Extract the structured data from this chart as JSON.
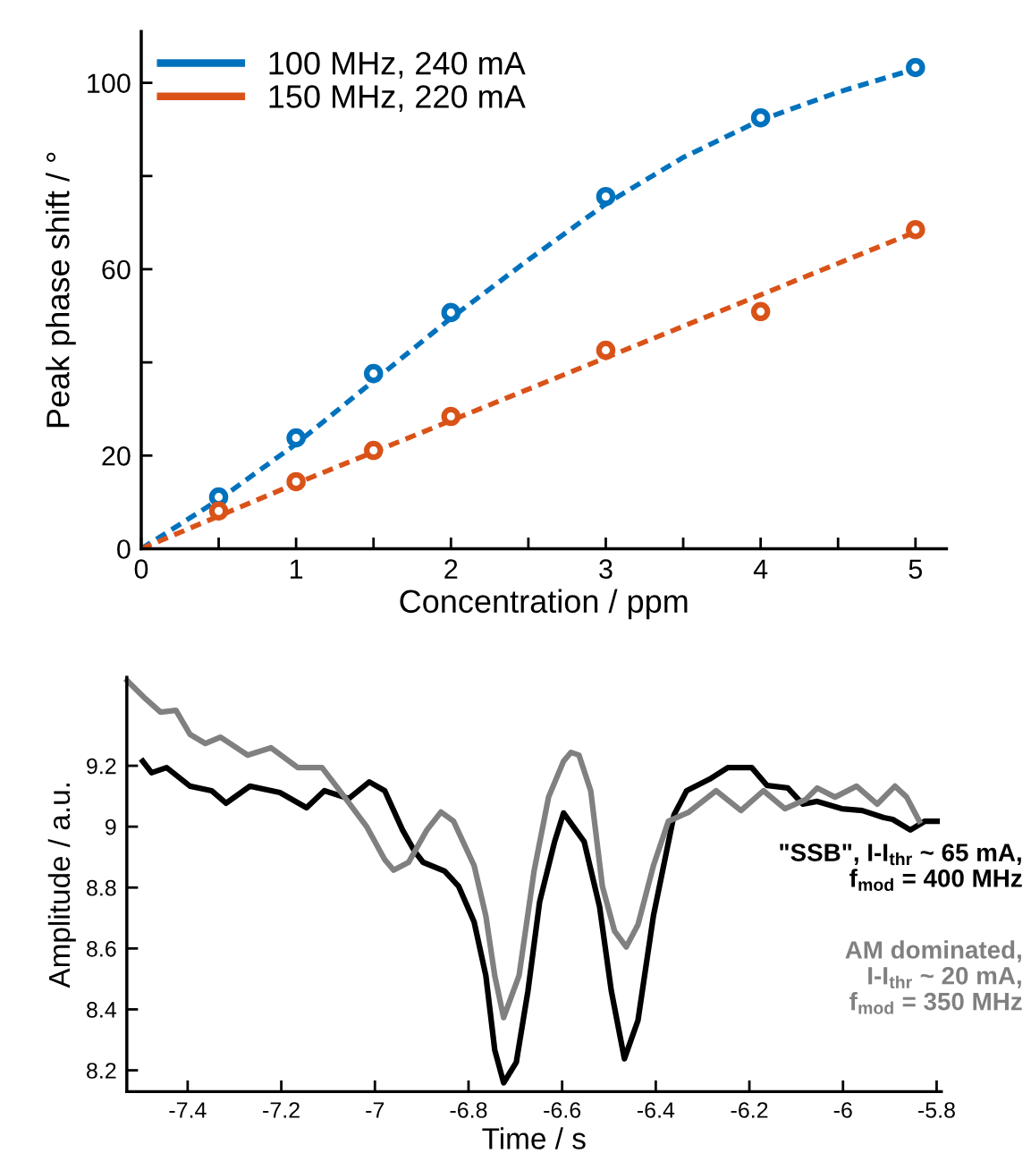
{
  "chart_data": [
    {
      "type": "scatter",
      "xlabel": "Concentration / ppm",
      "ylabel": "Peak phase shift / °",
      "xlim": [
        0,
        5.2
      ],
      "ylim": [
        0,
        111
      ],
      "xticks": [
        0,
        {
          "value": 0.5,
          "label": null
        },
        1,
        {
          "value": 1.5,
          "label": null
        },
        2,
        {
          "value": 2.5,
          "label": null
        },
        3,
        {
          "value": 3.5,
          "label": null
        },
        4,
        {
          "value": 4.5,
          "label": null
        },
        5
      ],
      "yticks": [
        0,
        20,
        {
          "value": 40,
          "label": null
        },
        60,
        {
          "value": 80,
          "label": null
        },
        100
      ],
      "grid": false,
      "legend": "top left",
      "series": [
        {
          "type": "scatter",
          "marker": "circle",
          "color": "#0072bd",
          "x": [
            0.5,
            1,
            1.5,
            2,
            3,
            4,
            5
          ],
          "values": [
            11.1,
            23.8,
            37.6,
            50.7,
            75.6,
            92.5,
            103.3
          ]
        },
        {
          "type": "scatter",
          "marker": "circle",
          "color": "#d95319",
          "x": [
            0.5,
            1,
            1.5,
            2,
            3,
            4,
            5
          ],
          "values": [
            8.1,
            14.4,
            21.1,
            28.4,
            42.6,
            50.9,
            68.5
          ]
        },
        {
          "type": "line",
          "name": "100 MHz, 240 mA",
          "line_style": "dashed",
          "marker": "none",
          "color": "#0072bd",
          "x": [
            0,
            0.5,
            1,
            1.5,
            2,
            2.5,
            3,
            3.5,
            4,
            4.5,
            5
          ],
          "values": [
            0,
            10.5,
            22.5,
            36,
            49.5,
            62,
            74,
            84,
            92,
            98,
            103
          ]
        },
        {
          "type": "line",
          "name": "150 MHz, 220 mA",
          "line_style": "dashed",
          "marker": "none",
          "color": "#d95319",
          "x": [
            0,
            1,
            2,
            3,
            4,
            5
          ],
          "values": [
            0,
            14,
            27.5,
            41,
            54.5,
            68
          ]
        }
      ]
    },
    {
      "type": "line",
      "xlabel": "Time / s",
      "ylabel": "Amplitude / a.u.",
      "xlim": [
        -7.53,
        -5.79
      ],
      "ylim": [
        8.13,
        9.49
      ],
      "xticks": [
        -7.4,
        -7.2,
        -7,
        -6.8,
        -6.6,
        -6.4,
        -6.2,
        -6,
        -5.8
      ],
      "yticks": [
        8.2,
        8.4,
        8.6,
        8.8,
        9,
        9.2
      ],
      "grid": false,
      "series": [
        {
          "name": "\"SSB\", I-I$_{thr}$ ~ 65 mA,\nf$_{mod}$ = 400 MHz",
          "color": "#000000",
          "line_style": "solid",
          "marker": "none",
          "x": [
            -7.496,
            -7.477,
            -7.445,
            -7.395,
            -7.349,
            -7.318,
            -7.267,
            -7.203,
            -7.146,
            -7.108,
            -7.056,
            -7.012,
            -6.979,
            -6.941,
            -6.916,
            -6.897,
            -6.851,
            -6.821,
            -6.788,
            -6.763,
            -6.744,
            -6.725,
            -6.698,
            -6.673,
            -6.648,
            -6.616,
            -6.597,
            -6.553,
            -6.52,
            -6.495,
            -6.467,
            -6.438,
            -6.405,
            -6.361,
            -6.334,
            -6.285,
            -6.246,
            -6.195,
            -6.162,
            -6.118,
            -6.086,
            -6.055,
            -6.003,
            -5.959,
            -5.913,
            -5.894,
            -5.856,
            -5.825,
            -5.799
          ],
          "values": [
            9.215,
            9.177,
            9.194,
            9.133,
            9.118,
            9.077,
            9.133,
            9.112,
            9.062,
            9.118,
            9.092,
            9.147,
            9.118,
            8.989,
            8.921,
            8.883,
            8.854,
            8.804,
            8.687,
            8.511,
            8.267,
            8.159,
            8.226,
            8.461,
            8.754,
            8.951,
            9.045,
            8.951,
            8.737,
            8.461,
            8.238,
            8.364,
            8.707,
            9.039,
            9.118,
            9.156,
            9.194,
            9.194,
            9.135,
            9.127,
            9.074,
            9.083,
            9.059,
            9.053,
            9.03,
            9.024,
            8.989,
            9.018,
            9.018
          ]
        },
        {
          "name": "AM dominated,\nI-I$_{thr}$ ~ 20 mA,\nf$_{mod}$ = 350 MHz",
          "color": "#808080",
          "line_style": "solid",
          "marker": "none",
          "x": [
            -7.529,
            -7.49,
            -7.458,
            -7.425,
            -7.395,
            -7.362,
            -7.33,
            -7.272,
            -7.222,
            -7.165,
            -7.113,
            -7.069,
            -7.018,
            -6.979,
            -6.96,
            -6.928,
            -6.889,
            -6.859,
            -6.832,
            -6.788,
            -6.763,
            -6.744,
            -6.725,
            -6.692,
            -6.66,
            -6.629,
            -6.597,
            -6.581,
            -6.564,
            -6.539,
            -6.514,
            -6.488,
            -6.463,
            -6.438,
            -6.405,
            -6.373,
            -6.329,
            -6.271,
            -6.218,
            -6.17,
            -6.124,
            -6.08,
            -6.055,
            -6.017,
            -5.971,
            -5.927,
            -5.889,
            -5.864,
            -5.837
          ],
          "values": [
            9.479,
            9.42,
            9.376,
            9.382,
            9.303,
            9.273,
            9.294,
            9.235,
            9.259,
            9.194,
            9.194,
            9.106,
            9.001,
            8.892,
            8.857,
            8.883,
            8.989,
            9.048,
            9.018,
            8.872,
            8.707,
            8.511,
            8.373,
            8.511,
            8.854,
            9.097,
            9.215,
            9.244,
            9.235,
            9.118,
            8.804,
            8.657,
            8.605,
            8.678,
            8.872,
            9.018,
            9.048,
            9.118,
            9.053,
            9.118,
            9.059,
            9.089,
            9.127,
            9.097,
            9.133,
            9.074,
            9.133,
            9.097,
            9.018
          ]
        }
      ]
    }
  ]
}
